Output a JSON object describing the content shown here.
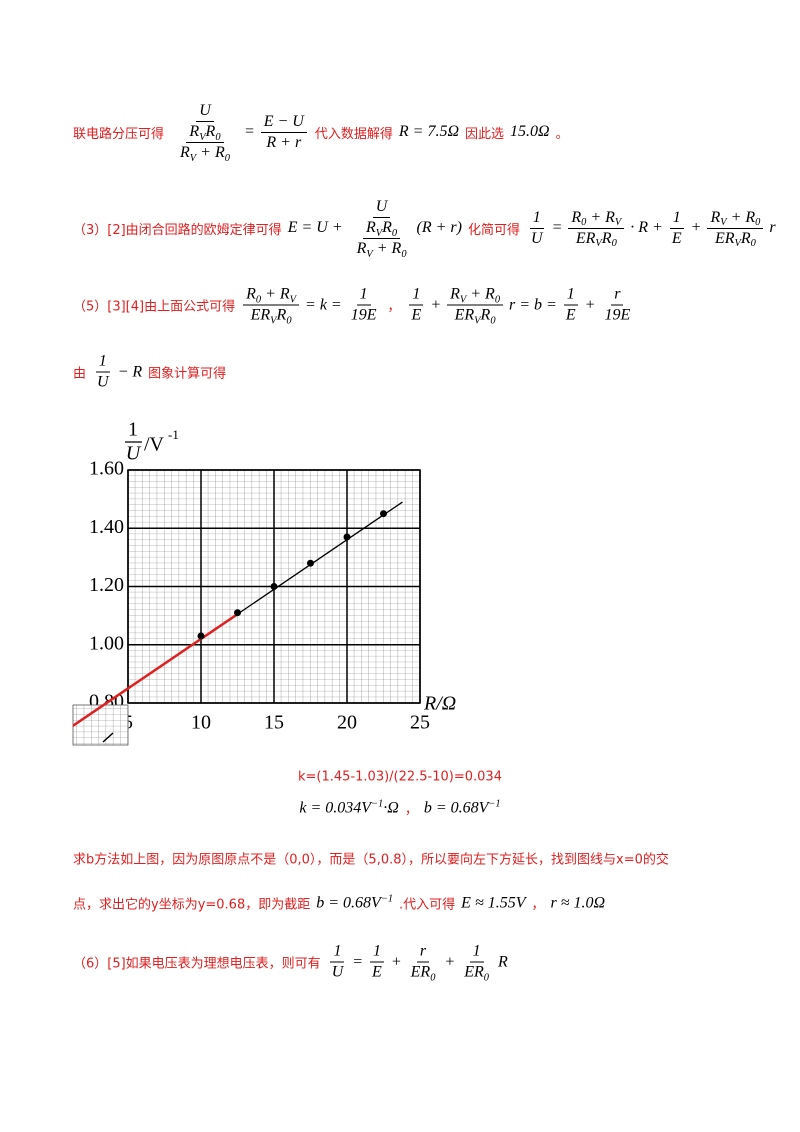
{
  "lines": [
    [
      {
        "t": "联电路分压可得"
      },
      {
        "m": [
          {
            "num": [
              "U"
            ],
            "den": [
              {
                "num": [
                  {
                    "b": "R",
                    "sub": "V"
                  },
                  {
                    "b": "R",
                    "sub": "0"
                  }
                ],
                "den": [
                  {
                    "b": "R",
                    "sub": "V"
                  },
                  " + ",
                  {
                    "b": "R",
                    "sub": "0"
                  }
                ]
              }
            ]
          },
          " = ",
          {
            "num": [
              "E − U"
            ],
            "den": [
              "R + r"
            ]
          }
        ]
      },
      {
        "t": "代入数据解得"
      },
      {
        "m": [
          "R = 7.5Ω"
        ]
      },
      {
        "t": "因此选"
      },
      {
        "m": [
          "15.0Ω"
        ]
      },
      {
        "t": "。"
      }
    ],
    [
      {
        "t": "（3）[2]由闭合回路的欧姆定律可得"
      },
      {
        "m": [
          "E = U + ",
          {
            "num": [
              "U"
            ],
            "den": [
              {
                "num": [
                  {
                    "b": "R",
                    "sub": "V"
                  },
                  {
                    "b": "R",
                    "sub": "0"
                  }
                ],
                "den": [
                  {
                    "b": "R",
                    "sub": "V"
                  },
                  " + ",
                  {
                    "b": "R",
                    "sub": "0"
                  }
                ]
              }
            ]
          },
          "(R + r)"
        ]
      },
      {
        "t": "化简可得"
      },
      {
        "m": [
          {
            "num": [
              "1"
            ],
            "den": [
              "U"
            ]
          },
          " = ",
          {
            "num": [
              {
                "b": "R",
                "sub": "0"
              },
              " + ",
              {
                "b": "R",
                "sub": "V"
              }
            ],
            "den": [
              "E",
              {
                "b": "R",
                "sub": "V"
              },
              {
                "b": "R",
                "sub": "0"
              }
            ]
          },
          " · R + ",
          {
            "num": [
              "1"
            ],
            "den": [
              "E"
            ]
          },
          " + ",
          {
            "num": [
              {
                "b": "R",
                "sub": "V"
              },
              " + ",
              {
                "b": "R",
                "sub": "0"
              }
            ],
            "den": [
              "E",
              {
                "b": "R",
                "sub": "V"
              },
              {
                "b": "R",
                "sub": "0"
              }
            ]
          },
          " r"
        ]
      }
    ],
    [
      {
        "t": "（5）[3][4]由上面公式可得"
      },
      {
        "m": [
          {
            "num": [
              {
                "b": "R",
                "sub": "0"
              },
              " + ",
              {
                "b": "R",
                "sub": "V"
              }
            ],
            "den": [
              "E",
              {
                "b": "R",
                "sub": "V"
              },
              {
                "b": "R",
                "sub": "0"
              }
            ]
          },
          " = k = ",
          {
            "num": [
              "1"
            ],
            "den": [
              "19E"
            ]
          }
        ]
      },
      {
        "t": "，"
      },
      {
        "m": [
          {
            "num": [
              "1"
            ],
            "den": [
              "E"
            ]
          },
          " + ",
          {
            "num": [
              {
                "b": "R",
                "sub": "V"
              },
              " + ",
              {
                "b": "R",
                "sub": "0"
              }
            ],
            "den": [
              "E",
              {
                "b": "R",
                "sub": "V"
              },
              {
                "b": "R",
                "sub": "0"
              }
            ]
          },
          " r = b = ",
          {
            "num": [
              "1"
            ],
            "den": [
              "E"
            ]
          },
          " + ",
          {
            "num": [
              "r"
            ],
            "den": [
              "19E"
            ]
          }
        ]
      }
    ],
    [
      {
        "t": "由"
      },
      {
        "m": [
          {
            "num": [
              "1"
            ],
            "den": [
              "U"
            ]
          },
          " − R"
        ]
      },
      {
        "t": "图象计算可得"
      }
    ],
    [
      {
        "t": "k=(1.45-1.03)/(22.5-10)=0.034"
      }
    ],
    [
      {
        "m": [
          "k = 0.034",
          {
            "b": "V",
            "sup": "−1"
          },
          "·Ω"
        ]
      },
      {
        "t": "，"
      },
      {
        "m": [
          "b = 0.68",
          {
            "b": "V",
            "sup": "−1"
          }
        ]
      }
    ],
    [
      {
        "t": "求b方法如上图，因为原图原点不是（0,0），而是（5,0.8），所以要向左下方延长，找到图线与x=0的交"
      }
    ],
    [
      {
        "t": "点，求出它的y坐标为y=0.68，即为截距"
      },
      {
        "m": [
          "b = 0.68",
          {
            "b": "V",
            "sup": "−1"
          }
        ]
      },
      {
        "t": ".代入可得"
      },
      {
        "m": [
          "E ≈ 1.55V"
        ]
      },
      {
        "t": "，"
      },
      {
        "m": [
          "r ≈ 1.0Ω"
        ]
      }
    ],
    [
      {
        "t": "（6）[5]如果电压表为理想电压表，则可有"
      },
      {
        "m": [
          {
            "num": [
              "1"
            ],
            "den": [
              "U"
            ]
          },
          " = ",
          {
            "num": [
              "1"
            ],
            "den": [
              "E"
            ]
          },
          " + ",
          {
            "num": [
              "r"
            ],
            "den": [
              "E",
              {
                "b": "R",
                "sub": "0"
              }
            ]
          },
          " + ",
          {
            "num": [
              "1"
            ],
            "den": [
              "E",
              {
                "b": "R",
                "sub": "0"
              }
            ]
          },
          " R"
        ]
      }
    ]
  ],
  "figure": {
    "y_label": {
      "num": "1",
      "den": "U",
      "unit": "/V",
      "sup": "-1"
    },
    "x_label": "R/Ω",
    "xlim": [
      5,
      25
    ],
    "ylim": [
      0.8,
      1.6
    ],
    "xticks": [
      5,
      10,
      15,
      20,
      25
    ],
    "yticks": [
      {
        "value": 0.8,
        "label": "0.80"
      },
      {
        "value": 1.0,
        "label": "1.00"
      },
      {
        "value": 1.2,
        "label": "1.20"
      },
      {
        "value": 1.4,
        "label": "1.40"
      },
      {
        "value": 1.6,
        "label": "1.60"
      }
    ],
    "points": {
      "x": [
        10,
        12.5,
        15,
        17.5,
        20,
        22.5
      ],
      "y": [
        1.03,
        1.11,
        1.2,
        1.28,
        1.37,
        1.45
      ]
    },
    "fit_line": {
      "x": [
        10,
        23.8
      ],
      "y": [
        1.02,
        1.49
      ]
    },
    "extension": {
      "x": [
        0,
        12.5
      ],
      "y": [
        0.68,
        1.105
      ]
    },
    "point_color": "#000000",
    "line_color": "#000000",
    "extension_color": "#e02020"
  }
}
